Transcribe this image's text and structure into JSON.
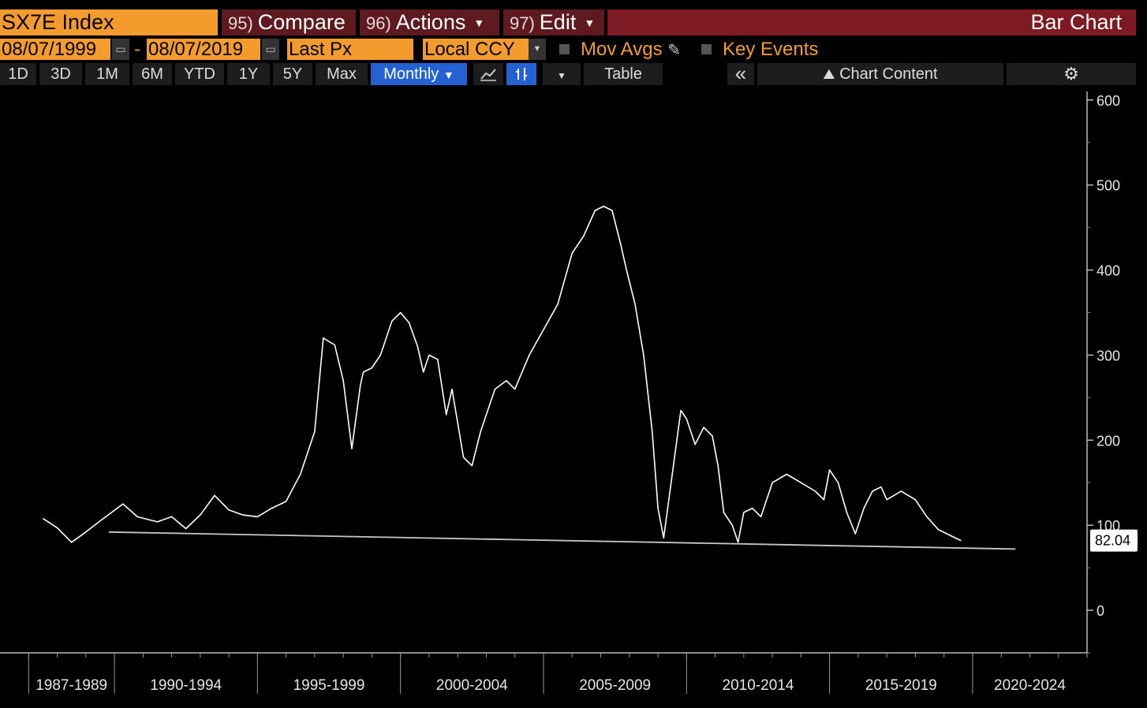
{
  "header": {
    "ticker": "SX7E Index",
    "compare": {
      "num": "95)",
      "label": "Compare"
    },
    "actions": {
      "num": "96)",
      "label": "Actions"
    },
    "edit": {
      "num": "97)",
      "label": "Edit"
    },
    "window_title": "Bar Chart"
  },
  "controls": {
    "start_date": "08/07/1999",
    "end_date": "08/07/2019",
    "field": "Last Px",
    "currency": "Local CCY",
    "mov_avgs": "Mov Avgs",
    "key_events": "Key Events"
  },
  "toolbar": {
    "ranges": [
      "1D",
      "3D",
      "1M",
      "6M",
      "YTD",
      "1Y",
      "5Y",
      "Max"
    ],
    "period": "Monthly",
    "table": "Table",
    "chart_content": "Chart Content"
  },
  "colors": {
    "accent_orange": "#f39b2d",
    "title_red": "#7d1a22",
    "button_red": "#5e1a1f",
    "selected_blue": "#2462d4",
    "line": "#ffffff"
  },
  "chart_data": {
    "type": "line",
    "title": "",
    "xlabel": "",
    "ylabel": "",
    "y_ticks": [
      0,
      100,
      200,
      300,
      400,
      500,
      600
    ],
    "ylim": [
      -50,
      610
    ],
    "x_tick_labels": [
      "1987-1989",
      "1990-1994",
      "1995-1999",
      "2000-2004",
      "2005-2009",
      "2010-2014",
      "2015-2019",
      "2020-2024"
    ],
    "xlim": [
      1986.0,
      2024.0
    ],
    "last_price": "82.04",
    "series": [
      {
        "x": [
          1987.5,
          1988.0,
          1988.5,
          1989.0,
          1989.5,
          1989.9,
          1990.3,
          1990.8,
          1991.5,
          1992.0,
          1992.5,
          1993.0,
          1993.5,
          1994.0,
          1994.5,
          1995.0,
          1995.5,
          1996.0,
          1996.5,
          1997.0,
          1997.3,
          1997.7,
          1998.0,
          1998.3,
          1998.6,
          1998.7,
          1999.0,
          1999.3,
          1999.7,
          2000.0,
          2000.3,
          2000.6,
          2000.8,
          2001.0,
          2001.3,
          2001.6,
          2001.8,
          2002.2,
          2002.5,
          2002.8,
          2003.0,
          2003.3,
          2003.7,
          2004.0,
          2004.5,
          2005.0,
          2005.5,
          2006.0,
          2006.4,
          2006.8,
          2007.1,
          2007.4,
          2007.7,
          2007.9,
          2008.2,
          2008.5,
          2008.8,
          2009.0,
          2009.2,
          2009.5,
          2009.8,
          2010.0,
          2010.3,
          2010.6,
          2010.9,
          2011.1,
          2011.3,
          2011.6,
          2011.8,
          2012.0,
          2012.3,
          2012.6,
          2013.0,
          2013.5,
          2014.0,
          2014.5,
          2014.8,
          2015.0,
          2015.3,
          2015.6,
          2015.9,
          2016.2,
          2016.5,
          2016.8,
          2017.0,
          2017.5,
          2018.0,
          2018.4,
          2018.8,
          2019.1,
          2019.4,
          2019.6
        ],
        "y": [
          108,
          97,
          80,
          92,
          105,
          115,
          125,
          110,
          104,
          110,
          96,
          112,
          135,
          118,
          112,
          110,
          120,
          128,
          160,
          210,
          320,
          312,
          270,
          190,
          265,
          280,
          285,
          300,
          340,
          350,
          338,
          310,
          280,
          300,
          295,
          230,
          260,
          180,
          170,
          210,
          230,
          260,
          270,
          260,
          300,
          330,
          360,
          420,
          440,
          470,
          475,
          470,
          430,
          400,
          360,
          300,
          210,
          120,
          85,
          160,
          235,
          225,
          195,
          215,
          205,
          170,
          115,
          100,
          80,
          115,
          120,
          110,
          150,
          160,
          150,
          140,
          130,
          165,
          150,
          115,
          90,
          120,
          140,
          145,
          130,
          140,
          130,
          110,
          95,
          90,
          85,
          82
        ]
      }
    ],
    "trendline": {
      "x": [
        1989.8,
        2021.5
      ],
      "y": [
        92,
        72
      ]
    }
  }
}
